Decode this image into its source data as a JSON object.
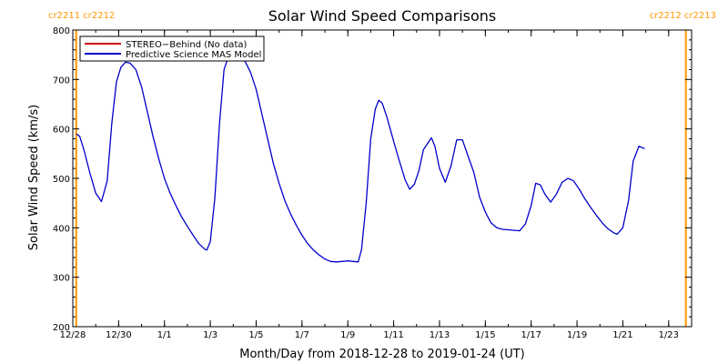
{
  "chart_data": {
    "type": "line",
    "title": "Solar Wind Speed Comparisons",
    "xlabel": "Month/Day from 2018-12-28 to 2019-01-24 (UT)",
    "ylabel": "Solar Wind Speed (km/s)",
    "ylim": [
      200,
      800
    ],
    "yticks": [
      200,
      300,
      400,
      500,
      600,
      700,
      800
    ],
    "x_day_range": [
      0.0,
      27.0
    ],
    "xticks": [
      {
        "day": 0,
        "label": "12/28"
      },
      {
        "day": 2,
        "label": "12/30"
      },
      {
        "day": 4,
        "label": "1/1"
      },
      {
        "day": 6,
        "label": "1/3"
      },
      {
        "day": 8,
        "label": "1/5"
      },
      {
        "day": 10,
        "label": "1/7"
      },
      {
        "day": 12,
        "label": "1/9"
      },
      {
        "day": 14,
        "label": "1/11"
      },
      {
        "day": 16,
        "label": "1/13"
      },
      {
        "day": 18,
        "label": "1/15"
      },
      {
        "day": 20,
        "label": "1/17"
      },
      {
        "day": 22,
        "label": "1/19"
      },
      {
        "day": 24,
        "label": "1/21"
      },
      {
        "day": 26,
        "label": "1/23"
      }
    ],
    "carrington_markers": [
      {
        "day": 0.15,
        "label": "cr2211 cr2212",
        "align": "start"
      },
      {
        "day": 26.75,
        "label": "cr2212 cr2213",
        "align": "end"
      }
    ],
    "legend": {
      "placement": "top-left"
    },
    "series": [
      {
        "name": "STEREO−Behind (No data)",
        "color": "#cc0000",
        "points": []
      },
      {
        "name": "Predictive Science MAS Model",
        "color": "#0000cc",
        "points": [
          [
            0.15,
            590
          ],
          [
            0.3,
            585
          ],
          [
            0.5,
            555
          ],
          [
            0.75,
            510
          ],
          [
            1.0,
            470
          ],
          [
            1.25,
            453
          ],
          [
            1.5,
            495
          ],
          [
            1.7,
            610
          ],
          [
            1.9,
            695
          ],
          [
            2.1,
            725
          ],
          [
            2.3,
            735
          ],
          [
            2.5,
            733
          ],
          [
            2.75,
            720
          ],
          [
            3.0,
            685
          ],
          [
            3.25,
            635
          ],
          [
            3.5,
            585
          ],
          [
            3.75,
            540
          ],
          [
            4.0,
            500
          ],
          [
            4.25,
            470
          ],
          [
            4.5,
            445
          ],
          [
            4.75,
            422
          ],
          [
            5.0,
            403
          ],
          [
            5.25,
            385
          ],
          [
            5.5,
            368
          ],
          [
            5.75,
            357
          ],
          [
            5.85,
            355
          ],
          [
            6.0,
            372
          ],
          [
            6.2,
            460
          ],
          [
            6.4,
            610
          ],
          [
            6.6,
            720
          ],
          [
            6.8,
            748
          ],
          [
            7.0,
            755
          ],
          [
            7.25,
            752
          ],
          [
            7.5,
            738
          ],
          [
            7.75,
            715
          ],
          [
            8.0,
            680
          ],
          [
            8.25,
            630
          ],
          [
            8.5,
            580
          ],
          [
            8.75,
            530
          ],
          [
            9.0,
            490
          ],
          [
            9.25,
            455
          ],
          [
            9.5,
            428
          ],
          [
            9.75,
            405
          ],
          [
            10.0,
            385
          ],
          [
            10.25,
            368
          ],
          [
            10.5,
            355
          ],
          [
            10.75,
            345
          ],
          [
            11.0,
            337
          ],
          [
            11.25,
            332
          ],
          [
            11.5,
            331
          ],
          [
            11.75,
            332
          ],
          [
            12.0,
            333
          ],
          [
            12.25,
            332
          ],
          [
            12.45,
            331
          ],
          [
            12.6,
            356
          ],
          [
            12.8,
            450
          ],
          [
            13.0,
            580
          ],
          [
            13.2,
            640
          ],
          [
            13.35,
            658
          ],
          [
            13.5,
            652
          ],
          [
            13.7,
            625
          ],
          [
            14.0,
            575
          ],
          [
            14.25,
            535
          ],
          [
            14.5,
            497
          ],
          [
            14.7,
            478
          ],
          [
            14.9,
            488
          ],
          [
            15.1,
            515
          ],
          [
            15.3,
            558
          ],
          [
            15.5,
            572
          ],
          [
            15.65,
            582
          ],
          [
            15.8,
            565
          ],
          [
            16.0,
            520
          ],
          [
            16.25,
            492
          ],
          [
            16.5,
            525
          ],
          [
            16.75,
            578
          ],
          [
            17.0,
            578
          ],
          [
            17.25,
            545
          ],
          [
            17.5,
            512
          ],
          [
            17.75,
            462
          ],
          [
            18.0,
            432
          ],
          [
            18.25,
            410
          ],
          [
            18.5,
            400
          ],
          [
            18.75,
            397
          ],
          [
            19.0,
            396
          ],
          [
            19.25,
            395
          ],
          [
            19.5,
            394
          ],
          [
            19.75,
            408
          ],
          [
            20.0,
            445
          ],
          [
            20.2,
            490
          ],
          [
            20.4,
            487
          ],
          [
            20.6,
            468
          ],
          [
            20.85,
            452
          ],
          [
            21.1,
            468
          ],
          [
            21.35,
            492
          ],
          [
            21.6,
            500
          ],
          [
            21.85,
            495
          ],
          [
            22.1,
            478
          ],
          [
            22.35,
            458
          ],
          [
            22.6,
            441
          ],
          [
            22.85,
            425
          ],
          [
            23.1,
            410
          ],
          [
            23.35,
            398
          ],
          [
            23.6,
            390
          ],
          [
            23.75,
            387
          ],
          [
            24.0,
            400
          ],
          [
            24.25,
            455
          ],
          [
            24.45,
            535
          ],
          [
            24.7,
            565
          ],
          [
            24.95,
            560
          ]
        ]
      }
    ]
  }
}
